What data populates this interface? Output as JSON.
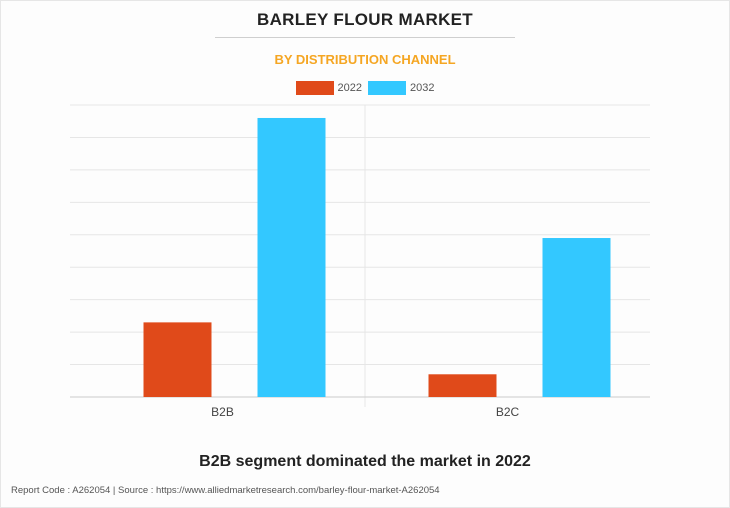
{
  "title": "BARLEY FLOUR MARKET",
  "subtitle": "BY DISTRIBUTION CHANNEL",
  "caption": "B2B segment dominated the market in 2022",
  "footer": "Report Code : A262054  |  Source : https://www.alliedmarketresearch.com/barley-flour-market-A262054",
  "colors": {
    "2022": "#e04a1a",
    "2032": "#33c8ff",
    "grid": "#e6e6e6",
    "axis": "#cccccc",
    "title_accent": "#f5a623"
  },
  "chart_data": {
    "type": "bar",
    "categories": [
      "B2B",
      "B2C"
    ],
    "series": [
      {
        "name": "2022",
        "values": [
          2.3,
          0.7
        ]
      },
      {
        "name": "2032",
        "values": [
          8.6,
          4.9
        ]
      }
    ],
    "xlabel": "",
    "ylabel": "",
    "ylim": [
      0,
      9
    ],
    "grid": true,
    "y_tick_labels_shown": false,
    "legend_position": "top-center"
  }
}
